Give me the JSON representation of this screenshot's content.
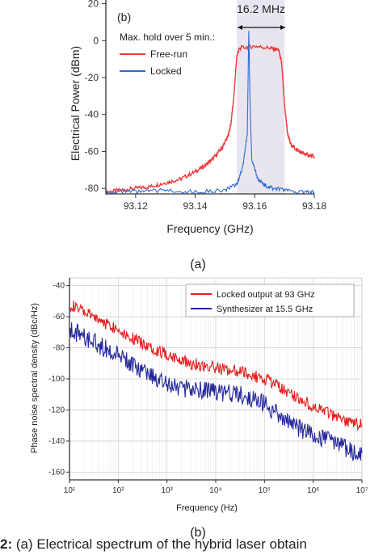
{
  "chart_data": [
    {
      "type": "line",
      "panel_label": "(b)",
      "xlabel": "Frequency (GHz)",
      "ylabel": "Electrical Power (dBm)",
      "xlim": [
        93.11,
        93.18
      ],
      "ylim": [
        -83,
        22
      ],
      "x_ticks": [
        93.12,
        93.14,
        93.16,
        93.18
      ],
      "y_ticks": [
        20,
        0,
        -20,
        -40,
        -60,
        -80
      ],
      "grid": false,
      "legend_title": "Max. hold over 5 min.:",
      "legend_position": "top-left",
      "annotation": "16.2 MHz",
      "shaded_band": [
        93.154,
        93.17
      ],
      "series": [
        {
          "name": "Free-run",
          "color": "#ee3b3b",
          "x": [
            93.11,
            93.115,
            93.12,
            93.125,
            93.13,
            93.135,
            93.14,
            93.143,
            93.146,
            93.149,
            93.151,
            93.152,
            93.153,
            93.154,
            93.155,
            93.16,
            93.165,
            93.168,
            93.169,
            93.17,
            93.171,
            93.172,
            93.174,
            93.176,
            93.178,
            93.18
          ],
          "y": [
            -82,
            -81,
            -80,
            -79,
            -77,
            -75,
            -71,
            -68,
            -64,
            -58,
            -52,
            -45,
            -30,
            -8,
            -4,
            -3,
            -4,
            -5,
            -12,
            -35,
            -50,
            -56,
            -59,
            -61,
            -62,
            -63
          ]
        },
        {
          "name": "Locked",
          "color": "#2f6bd6",
          "x": [
            93.11,
            93.12,
            93.13,
            93.14,
            93.15,
            93.154,
            93.156,
            93.1575,
            93.158,
            93.1585,
            93.159,
            93.161,
            93.163,
            93.166,
            93.17,
            93.175,
            93.18
          ],
          "y": [
            -82,
            -82,
            -81,
            -82,
            -81,
            -78,
            -68,
            -50,
            6,
            -40,
            -64,
            -75,
            -78,
            -80,
            -81,
            -82,
            -82
          ]
        }
      ],
      "subfigure_label": "(a)"
    },
    {
      "type": "line",
      "xlabel": "Frequency (Hz)",
      "ylabel": "Phase noise spectral density (dBc/Hz)",
      "x_scale": "log",
      "xlim": [
        10,
        10000000
      ],
      "ylim": [
        -165,
        -35
      ],
      "x_ticks": [
        "10¹",
        "10²",
        "10³",
        "10⁴",
        "10⁵",
        "10⁶",
        "10⁷"
      ],
      "y_ticks": [
        -40,
        -60,
        -80,
        -100,
        -120,
        -140,
        -160
      ],
      "grid": true,
      "legend_position": "top-right",
      "series": [
        {
          "name": "Locked output at 93 GHz",
          "color": "#e51d1d",
          "x": [
            10,
            30,
            100,
            300,
            1000,
            3000,
            10000,
            30000,
            100000,
            300000,
            1000000,
            3000000,
            10000000
          ],
          "y": [
            -52,
            -60,
            -68,
            -77,
            -84,
            -90,
            -93,
            -95,
            -100,
            -108,
            -118,
            -125,
            -130
          ]
        },
        {
          "name": "Synthesizer at 15.5 GHz",
          "color": "#24279a",
          "x": [
            10,
            30,
            100,
            300,
            1000,
            3000,
            10000,
            30000,
            100000,
            300000,
            1000000,
            3000000,
            10000000
          ],
          "y": [
            -68,
            -76,
            -85,
            -95,
            -104,
            -107,
            -108,
            -110,
            -116,
            -128,
            -136,
            -141,
            -150
          ]
        }
      ],
      "subfigure_label": "(b)"
    }
  ],
  "caption": {
    "prefix": "2:",
    "text": " (a) Electrical spectrum of the hybrid laser obtain"
  }
}
